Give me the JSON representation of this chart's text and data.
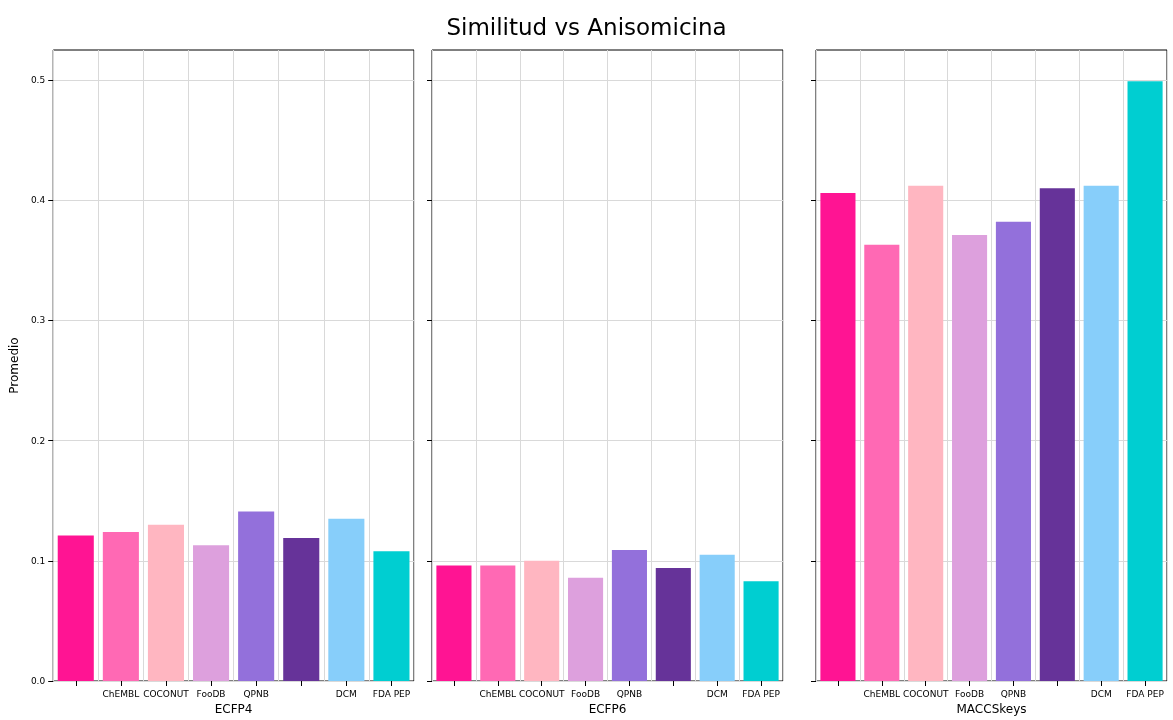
{
  "chart_data": [
    {
      "type": "bar",
      "xlabel": "ECFP4",
      "ylabel": "Promedio",
      "categories": [
        null,
        "ChEMBL",
        "COCONUT",
        "FooDB",
        "QPNB",
        null,
        "DCM",
        "FDA PEP"
      ],
      "values": [
        0.121,
        0.124,
        0.13,
        0.113,
        0.141,
        0.119,
        0.135,
        0.108
      ],
      "colors": [
        "#ff1493",
        "#ff69b4",
        "#ffb6c1",
        "#dda0dd",
        "#9370db",
        "#663399",
        "#87cefa",
        "#00ced1"
      ],
      "ylim": [
        0,
        0.525
      ],
      "yticks": [
        {
          "value": 0,
          "label": "0.0"
        },
        0.1,
        0.2,
        0.3,
        0.4,
        0.5
      ],
      "grid": true
    },
    {
      "type": "bar",
      "title": "Similitud vs Anisomicina",
      "xlabel": "ECFP6",
      "categories": [
        null,
        "ChEMBL",
        "COCONUT",
        "FooDB",
        "QPNB",
        null,
        "DCM",
        "FDA PEP"
      ],
      "values": [
        0.096,
        0.096,
        0.1,
        0.086,
        0.109,
        0.094,
        0.105,
        0.083
      ],
      "colors": [
        "#ff1493",
        "#ff69b4",
        "#ffb6c1",
        "#dda0dd",
        "#9370db",
        "#663399",
        "#87cefa",
        "#00ced1"
      ],
      "ylim": [
        0,
        0.525
      ],
      "yticks": [
        0,
        0.1,
        0.2,
        0.3,
        0.4,
        0.5
      ],
      "grid": true,
      "tick_labels": "x"
    },
    {
      "type": "bar",
      "xlabel": "MACCSkeys",
      "categories": [
        null,
        "ChEMBL",
        "COCONUT",
        "FooDB",
        "QPNB",
        null,
        "DCM",
        "FDA PEP"
      ],
      "values": [
        0.406,
        0.363,
        0.412,
        0.371,
        0.382,
        0.41,
        0.412,
        0.499
      ],
      "colors": [
        "#ff1493",
        "#ff69b4",
        "#ffb6c1",
        "#dda0dd",
        "#9370db",
        "#663399",
        "#87cefa",
        "#00ced1"
      ],
      "ylim": [
        0,
        0.525
      ],
      "yticks": [
        0,
        0.1,
        0.2,
        0.3,
        0.4,
        0.5
      ],
      "grid": true,
      "tick_labels": "x"
    }
  ]
}
